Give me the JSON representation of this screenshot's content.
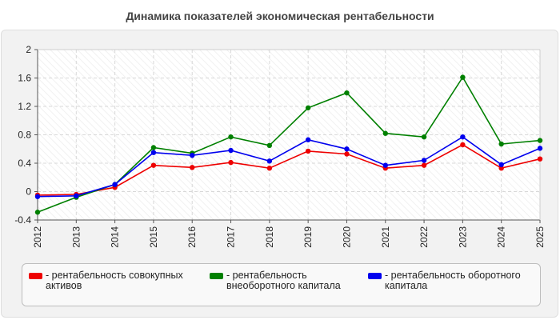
{
  "chart_data": {
    "type": "line",
    "title": "Динамика показателей экономическая рентабельности",
    "xlabel": "",
    "ylabel": "",
    "x": [
      "2012",
      "2013",
      "2014",
      "2015",
      "2016",
      "2017",
      "2018",
      "2019",
      "2020",
      "2021",
      "2022",
      "2023",
      "2024",
      "2025"
    ],
    "ylim": [
      -0.4,
      2
    ],
    "yticks": [
      "-0.4",
      "0",
      "0.4",
      "0.8",
      "1.2",
      "1.6",
      "2"
    ],
    "grid": true,
    "legend_position": "bottom",
    "series": [
      {
        "name": "- рентабельность совокупных активов",
        "color": "#ee0000",
        "values": [
          -0.05,
          -0.04,
          0.06,
          0.37,
          0.34,
          0.41,
          0.33,
          0.57,
          0.53,
          0.33,
          0.37,
          0.66,
          0.33,
          0.46
        ]
      },
      {
        "name": "- рентабельность внеоборотного капитала",
        "color": "#008000",
        "values": [
          -0.29,
          -0.08,
          0.1,
          0.62,
          0.54,
          0.77,
          0.65,
          1.18,
          1.39,
          0.82,
          0.77,
          1.61,
          0.67,
          0.72
        ]
      },
      {
        "name": "- рентабельность оборотного капитала",
        "color": "#0000ee",
        "values": [
          -0.07,
          -0.06,
          0.1,
          0.55,
          0.51,
          0.58,
          0.43,
          0.73,
          0.6,
          0.37,
          0.44,
          0.77,
          0.38,
          0.61
        ]
      }
    ]
  }
}
